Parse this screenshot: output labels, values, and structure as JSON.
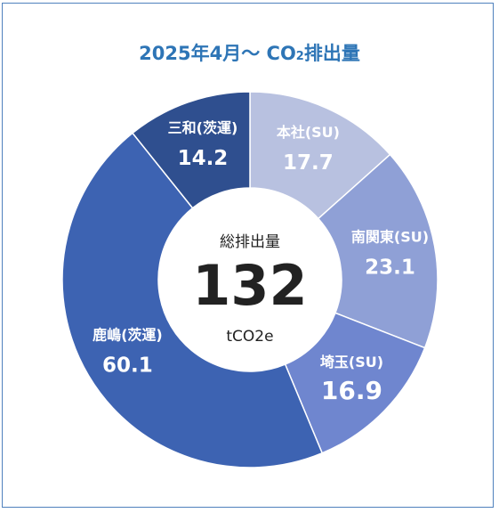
{
  "title_prefix": "2025年4月～ CO",
  "title_sub": "2",
  "title_suffix": "排出量",
  "center": {
    "label": "総排出量",
    "value": "132",
    "unit": "tCO2e"
  },
  "chart_data": {
    "type": "pie",
    "variant": "donut",
    "title": "2025年4月～ CO2排出量",
    "total": 132,
    "unit": "tCO2e",
    "slices": [
      {
        "name": "本社(SU)",
        "value": 17.7,
        "label": "17.7",
        "color": "#b8c1e0"
      },
      {
        "name": "南関東(SU)",
        "value": 23.1,
        "label": "23.1",
        "color": "#8fa0d6"
      },
      {
        "name": "埼玉(SU)",
        "value": 16.9,
        "label": "16.9",
        "color": "#6f86cf"
      },
      {
        "name": "鹿嶋(茨運)",
        "value": 60.1,
        "label": "60.1",
        "color": "#3d63b2"
      },
      {
        "name": "三和(茨運)",
        "value": 14.2,
        "label": "14.2",
        "color": "#2f4f8f"
      }
    ],
    "legend": "none"
  }
}
